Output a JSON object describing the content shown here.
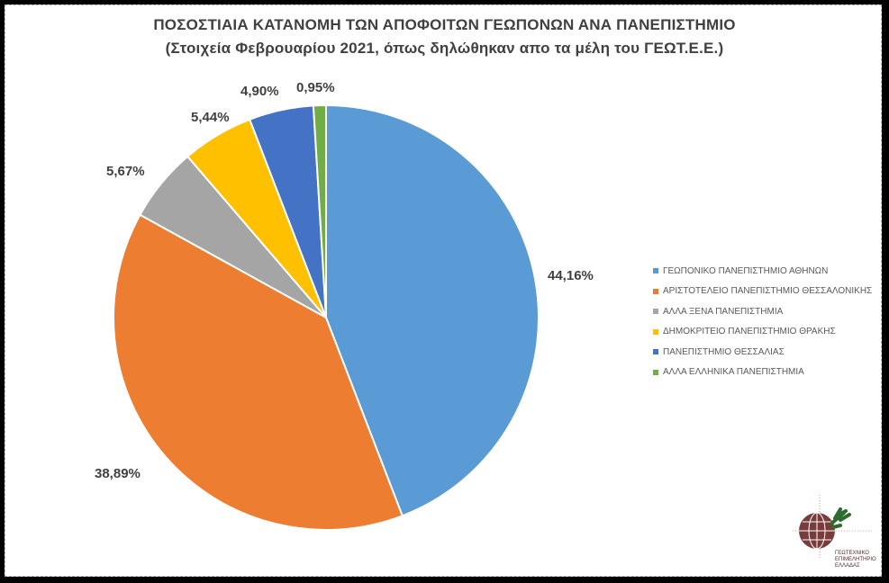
{
  "chart_data": {
    "type": "pie",
    "title": "ΠΟΣΟΣΤΙΑΙΑ ΚΑΤΑΝΟΜΗ ΤΩΝ ΑΠΟΦΟΙΤΩΝ ΓΕΩΠΟΝΩΝ ΑΝΑ ΠΑΝΕΠΙΣΤΗΜΙΟ",
    "subtitle": "(Στοιχεία Φεβρουαρίου  2021, όπως δηλώθηκαν  απο τα μέλη του ΓΕΩΤ.Ε.Ε.)",
    "categories": [
      "ΓΕΩΠΟΝΙΚΟ ΠΑΝΕΠΙΣΤΗΜΙΟ ΑΘΗΝΩΝ",
      "ΑΡΙΣΤΟΤΕΛΕΙΟ ΠΑΝΕΠΙΣΤΗΜΙΟ ΘΕΣΣΑΛΟΝΙΚΗΣ",
      "ΑΛΛΑ ΞΕΝΑ ΠΑΝΕΠΙΣΤΗΜΙΑ",
      "ΔΗΜΟΚΡΙΤΕΙΟ ΠΑΝΕΠΙΣΤΗΜΙΟ ΘΡΑΚΗΣ",
      "ΠΑΝΕΠΙΣΤΗΜΙΟ ΘΕΣΣΑΛΙΑΣ",
      "ΑΛΛΑ ΕΛΛΗΝΙΚΑ ΠΑΝΕΠΙΣΤΗΜΙΑ"
    ],
    "values": [
      44.16,
      38.89,
      5.67,
      5.44,
      4.9,
      0.95
    ],
    "labels": [
      "44,16%",
      "38,89%",
      "5,67%",
      "5,44%",
      "4,90%",
      "0,95%"
    ],
    "colors": [
      "#5B9BD5",
      "#ED7D31",
      "#A5A5A5",
      "#FFC000",
      "#4472C4",
      "#70AD47"
    ],
    "legend_position": "right"
  },
  "logo": {
    "org_line1": "ΓΕΩΤΕΧΝΙΚΟ",
    "org_line2": "ΕΠΙΜΕΛΗΤΗΡΙΟ",
    "org_line3": "ΕΛΛΑΔΑΣ",
    "ring_text": "ΓΕΩΤ.Ε.Ε."
  }
}
